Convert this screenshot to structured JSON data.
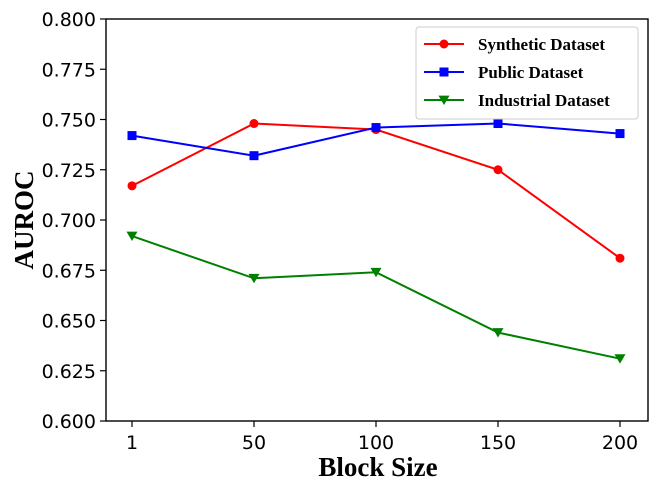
{
  "chart_data": {
    "type": "line",
    "title": "",
    "xlabel": "Block Size",
    "ylabel": "AUROC",
    "x": [
      1,
      50,
      100,
      150,
      200
    ],
    "x_tick_labels": [
      "1",
      "50",
      "100",
      "150",
      "200"
    ],
    "ylim": [
      0.6,
      0.8
    ],
    "y_ticks": [
      0.6,
      0.625,
      0.65,
      0.675,
      0.7,
      0.725,
      0.75,
      0.775,
      0.8
    ],
    "y_tick_labels": [
      "0.600",
      "0.625",
      "0.650",
      "0.675",
      "0.700",
      "0.725",
      "0.750",
      "0.775",
      "0.800"
    ],
    "grid": false,
    "legend_position": "top-right",
    "series": [
      {
        "name": "Synthetic Dataset",
        "color": "#ff0000",
        "marker": "circle",
        "values": [
          0.717,
          0.748,
          0.745,
          0.725,
          0.681
        ]
      },
      {
        "name": "Public Dataset",
        "color": "#0000ff",
        "marker": "square",
        "values": [
          0.742,
          0.732,
          0.746,
          0.748,
          0.743
        ]
      },
      {
        "name": "Industrial Dataset",
        "color": "#008000",
        "marker": "triangle-down",
        "values": [
          0.692,
          0.671,
          0.674,
          0.644,
          0.631
        ]
      }
    ]
  }
}
